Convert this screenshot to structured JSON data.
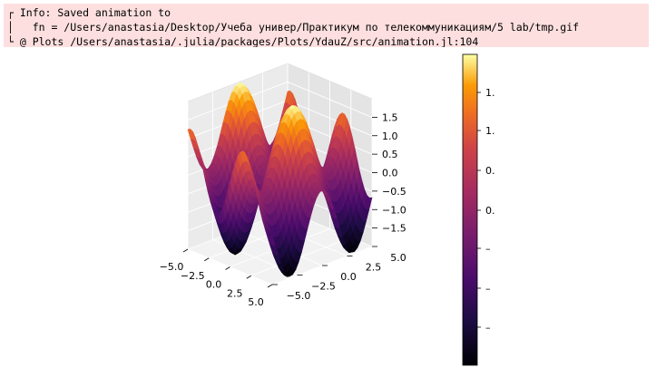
{
  "log": {
    "lines": [
      "┌ Info: Saved animation to",
      "│   fn = /Users/anastasia/Desktop/Учеба универ/Практикум по телекоммуникациям/5 lab/tmp.gif",
      "└ @ Plots /Users/anastasia/.julia/packages/Plots/YdauZ/src/animation.jl:104"
    ]
  },
  "chart_data": {
    "type": "surface",
    "title": "",
    "colormap": "inferno",
    "x_ticks": [
      "−5.0",
      "−2.5",
      "0.0",
      "2.5",
      "5.0"
    ],
    "y_ticks": [
      "−5.0",
      "−2.5",
      "0.0",
      "2.5",
      "5.0"
    ],
    "z_ticks": [
      "1.5",
      "1.0",
      "0.5",
      "0.0",
      "−0.5",
      "−1.0",
      "−1.5"
    ],
    "xlim": [
      -5,
      5
    ],
    "ylim": [
      -5,
      5
    ],
    "zlim": [
      -2,
      2
    ],
    "colorbar_ticks": [
      "1.",
      "1.",
      "0.",
      "0.",
      "–",
      "–",
      "–"
    ],
    "colorbar_range": [
      -2,
      2
    ]
  }
}
